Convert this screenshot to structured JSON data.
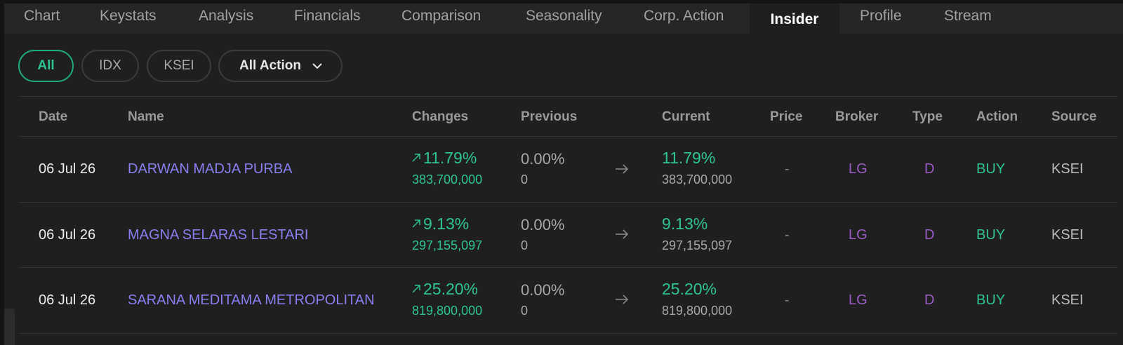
{
  "tabs": [
    {
      "label": "Chart",
      "active": false
    },
    {
      "label": "Keystats",
      "active": false
    },
    {
      "label": "Analysis",
      "active": false
    },
    {
      "label": "Financials",
      "active": false
    },
    {
      "label": "Comparison",
      "active": false
    },
    {
      "label": "Seasonality",
      "active": false
    },
    {
      "label": "Corp. Action",
      "active": false
    },
    {
      "label": "Insider",
      "active": true
    },
    {
      "label": "Profile",
      "active": false
    },
    {
      "label": "Stream",
      "active": false
    }
  ],
  "filters": {
    "source_pills": [
      {
        "label": "All",
        "active": true
      },
      {
        "label": "IDX",
        "active": false
      },
      {
        "label": "KSEI",
        "active": false
      }
    ],
    "action_dropdown": {
      "label": "All Action"
    }
  },
  "table": {
    "headers": {
      "date": "Date",
      "name": "Name",
      "changes": "Changes",
      "previous": "Previous",
      "current": "Current",
      "price": "Price",
      "broker": "Broker",
      "type": "Type",
      "action": "Action",
      "source": "Source"
    },
    "rows": [
      {
        "date": "06 Jul 26",
        "name": "DARWAN MADJA PURBA",
        "change_pct": "11.79%",
        "change_shares": "383,700,000",
        "previous_pct": "0.00%",
        "previous_shares": "0",
        "current_pct": "11.79%",
        "current_shares": "383,700,000",
        "price": "-",
        "broker": "LG",
        "type": "D",
        "action": "BUY",
        "source": "KSEI"
      },
      {
        "date": "06 Jul 26",
        "name": "MAGNA SELARAS LESTARI",
        "change_pct": "9.13%",
        "change_shares": "297,155,097",
        "previous_pct": "0.00%",
        "previous_shares": "0",
        "current_pct": "9.13%",
        "current_shares": "297,155,097",
        "price": "-",
        "broker": "LG",
        "type": "D",
        "action": "BUY",
        "source": "KSEI"
      },
      {
        "date": "06 Jul 26",
        "name": "SARANA MEDITAMA METROPOLITAN",
        "change_pct": "25.20%",
        "change_shares": "819,800,000",
        "previous_pct": "0.00%",
        "previous_shares": "0",
        "current_pct": "25.20%",
        "current_shares": "819,800,000",
        "price": "-",
        "broker": "LG",
        "type": "D",
        "action": "BUY",
        "source": "KSEI"
      }
    ]
  },
  "icons": {
    "dropdown": "chevron-down-icon",
    "change": "arrow-up-right-icon",
    "transition": "arrow-right-icon"
  },
  "colors": {
    "positive": "#2ec590",
    "name_link": "#8a7ff0",
    "broker_type": "#9a5cc4",
    "active_border": "#1fa97a"
  }
}
